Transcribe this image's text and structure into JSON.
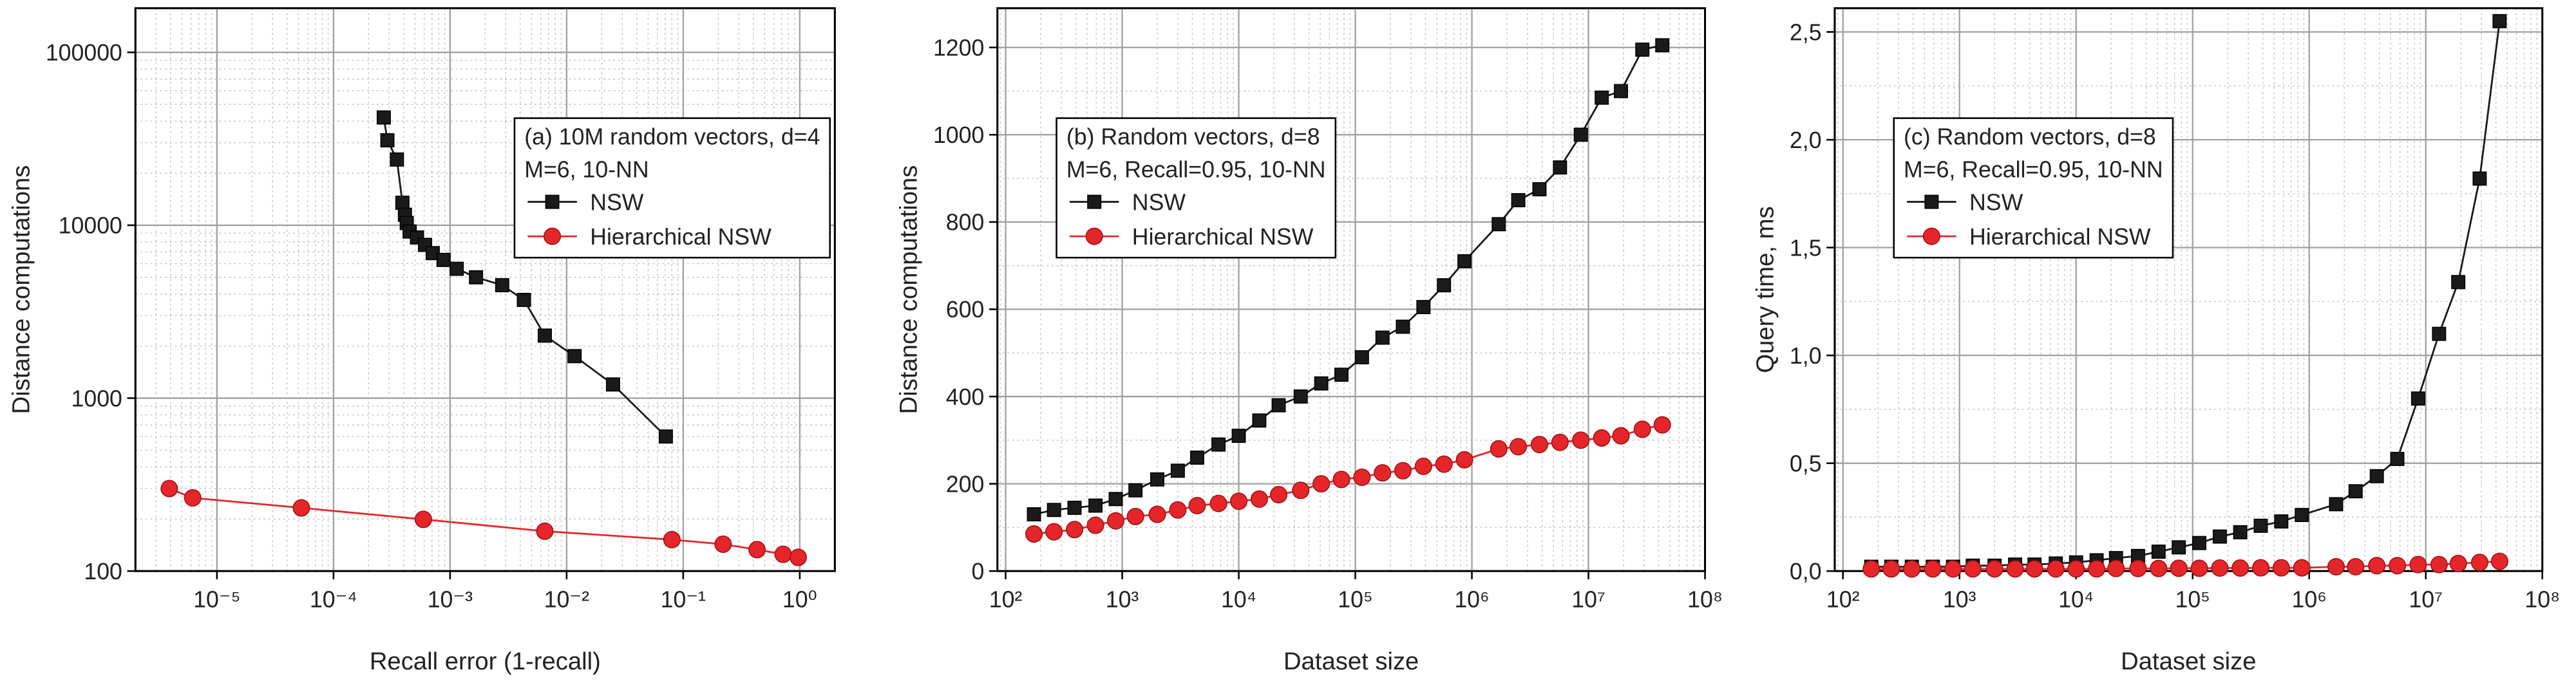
{
  "chart_data": [
    {
      "type": "line",
      "xscale": "log",
      "yscale": "log",
      "grid": true,
      "minor_grid": true,
      "legend_position": "upper right",
      "legend_text": [
        "(a) 10M random vectors, d=4",
        "M=6, 10-NN"
      ],
      "xlabel": "Recall error (1-recall)",
      "ylabel": "Distance computations",
      "xlim": [
        2e-06,
        2
      ],
      "ylim": [
        100,
        180000
      ],
      "xticks": [
        {
          "value": 1e-05,
          "label": "10⁻⁵"
        },
        {
          "value": 0.0001,
          "label": "10⁻⁴"
        },
        {
          "value": 0.001,
          "label": "10⁻³"
        },
        {
          "value": 0.01,
          "label": "10⁻²"
        },
        {
          "value": 0.1,
          "label": "10⁻¹"
        },
        {
          "value": 1,
          "label": "10⁰"
        }
      ],
      "yticks": [
        100,
        1000,
        10000,
        100000
      ],
      "series": [
        {
          "name": "NSW",
          "color": "#1a1a1a",
          "marker": "square",
          "x": [
            0.00027,
            0.00029,
            0.00035,
            0.00039,
            0.00041,
            0.000425,
            0.00045,
            0.00052,
            0.00061,
            0.00071,
            0.00088,
            0.00114,
            0.00167,
            0.0028,
            0.0043,
            0.0065,
            0.0117,
            0.025,
            0.071
          ],
          "values": [
            42000,
            31000,
            24000,
            13500,
            11500,
            10300,
            9200,
            8500,
            7700,
            6900,
            6300,
            5600,
            5000,
            4500,
            3700,
            2300,
            1750,
            1200,
            600
          ]
        },
        {
          "name": "Hierarchical NSW",
          "color": "#e4262b",
          "marker": "circle",
          "x": [
            3.9e-06,
            6.2e-06,
            5.3e-05,
            0.00059,
            0.0065,
            0.08,
            0.22,
            0.43,
            0.72,
            0.97
          ],
          "values": [
            300,
            265,
            232,
            199,
            170,
            152,
            143,
            133,
            125,
            120
          ]
        }
      ]
    },
    {
      "type": "line",
      "xscale": "log",
      "yscale": "linear",
      "grid": true,
      "minor_grid": true,
      "legend_position": "upper center",
      "legend_text": [
        "(b) Random vectors, d=8",
        "M=6, Recall=0.95, 10-NN"
      ],
      "xlabel": "Dataset size",
      "ylabel": "Distance computations",
      "xlim": [
        85,
        100000000
      ],
      "ylim": [
        0,
        1290
      ],
      "xticks": [
        {
          "value": 100,
          "label": "10²"
        },
        {
          "value": 1000,
          "label": "10³"
        },
        {
          "value": 10000,
          "label": "10⁴"
        },
        {
          "value": 100000,
          "label": "10⁵"
        },
        {
          "value": 1000000,
          "label": "10⁶"
        },
        {
          "value": 10000000,
          "label": "10⁷"
        },
        {
          "value": 100000000,
          "label": "10⁸"
        }
      ],
      "yticks": [
        0,
        200,
        400,
        600,
        800,
        1000,
        1200
      ],
      "x": [
        175,
        260,
        390,
        590,
        880,
        1300,
        2000,
        3000,
        4400,
        6700,
        10000,
        15000,
        22000,
        34000,
        51000,
        76000,
        114000,
        171000,
        256000,
        384000,
        576000,
        864000,
        1700000,
        2500000,
        3800000,
        5700000,
        8600000,
        13000000,
        19000000,
        29000000,
        43000000
      ],
      "series": [
        {
          "name": "NSW",
          "color": "#1a1a1a",
          "marker": "square",
          "values": [
            130,
            140,
            145,
            150,
            165,
            185,
            210,
            230,
            260,
            290,
            310,
            345,
            380,
            400,
            430,
            450,
            490,
            535,
            560,
            605,
            655,
            710,
            795,
            850,
            875,
            925,
            1000,
            1085,
            1100,
            1195,
            1205
          ]
        },
        {
          "name": "Hierarchical NSW",
          "color": "#e4262b",
          "marker": "circle",
          "values": [
            85,
            90,
            95,
            105,
            115,
            125,
            130,
            140,
            150,
            155,
            160,
            165,
            175,
            185,
            200,
            210,
            215,
            225,
            230,
            240,
            245,
            255,
            280,
            285,
            290,
            295,
            300,
            305,
            310,
            325,
            335
          ]
        }
      ]
    },
    {
      "type": "line",
      "xscale": "log",
      "yscale": "linear",
      "grid": true,
      "minor_grid": true,
      "legend_position": "upper center",
      "legend_text": [
        "(c) Random vectors, d=8",
        "M=6, Recall=0.95, 10-NN"
      ],
      "xlabel": "Dataset size",
      "ylabel": "Query time, ms",
      "xlim": [
        85,
        100000000
      ],
      "ylim": [
        0,
        2.61
      ],
      "xticks": [
        {
          "value": 100,
          "label": "10²"
        },
        {
          "value": 1000,
          "label": "10³"
        },
        {
          "value": 10000,
          "label": "10⁴"
        },
        {
          "value": 100000,
          "label": "10⁵"
        },
        {
          "value": 1000000,
          "label": "10⁶"
        },
        {
          "value": 10000000,
          "label": "10⁷"
        },
        {
          "value": 100000000,
          "label": "10⁸"
        }
      ],
      "yticks": [
        {
          "value": 0,
          "label": "0,0"
        },
        {
          "value": 0.5,
          "label": "0,5"
        },
        {
          "value": 1,
          "label": "1,0"
        },
        {
          "value": 1.5,
          "label": "1,5"
        },
        {
          "value": 2,
          "label": "2,0"
        },
        {
          "value": 2.5,
          "label": "2,5"
        }
      ],
      "x": [
        175,
        260,
        390,
        590,
        880,
        1300,
        2000,
        3000,
        4400,
        6700,
        10000,
        15000,
        22000,
        34000,
        51000,
        76000,
        114000,
        171000,
        256000,
        384000,
        576000,
        864000,
        1700000,
        2500000,
        3800000,
        5700000,
        8600000,
        13000000,
        19000000,
        29000000,
        43000000
      ],
      "series": [
        {
          "name": "NSW",
          "color": "#1a1a1a",
          "marker": "square",
          "values": [
            0.02,
            0.02,
            0.02,
            0.02,
            0.02,
            0.025,
            0.025,
            0.03,
            0.03,
            0.035,
            0.04,
            0.05,
            0.06,
            0.07,
            0.09,
            0.11,
            0.13,
            0.16,
            0.18,
            0.21,
            0.23,
            0.26,
            0.31,
            0.37,
            0.44,
            0.52,
            0.8,
            1.1,
            1.34,
            1.82,
            2.55
          ]
        },
        {
          "name": "Hierarchical NSW",
          "color": "#e4262b",
          "marker": "circle",
          "values": [
            0.01,
            0.01,
            0.01,
            0.01,
            0.01,
            0.01,
            0.01,
            0.01,
            0.01,
            0.01,
            0.01,
            0.01,
            0.012,
            0.012,
            0.012,
            0.013,
            0.013,
            0.014,
            0.014,
            0.015,
            0.015,
            0.015,
            0.02,
            0.02,
            0.025,
            0.025,
            0.03,
            0.03,
            0.035,
            0.04,
            0.045
          ]
        }
      ]
    }
  ]
}
